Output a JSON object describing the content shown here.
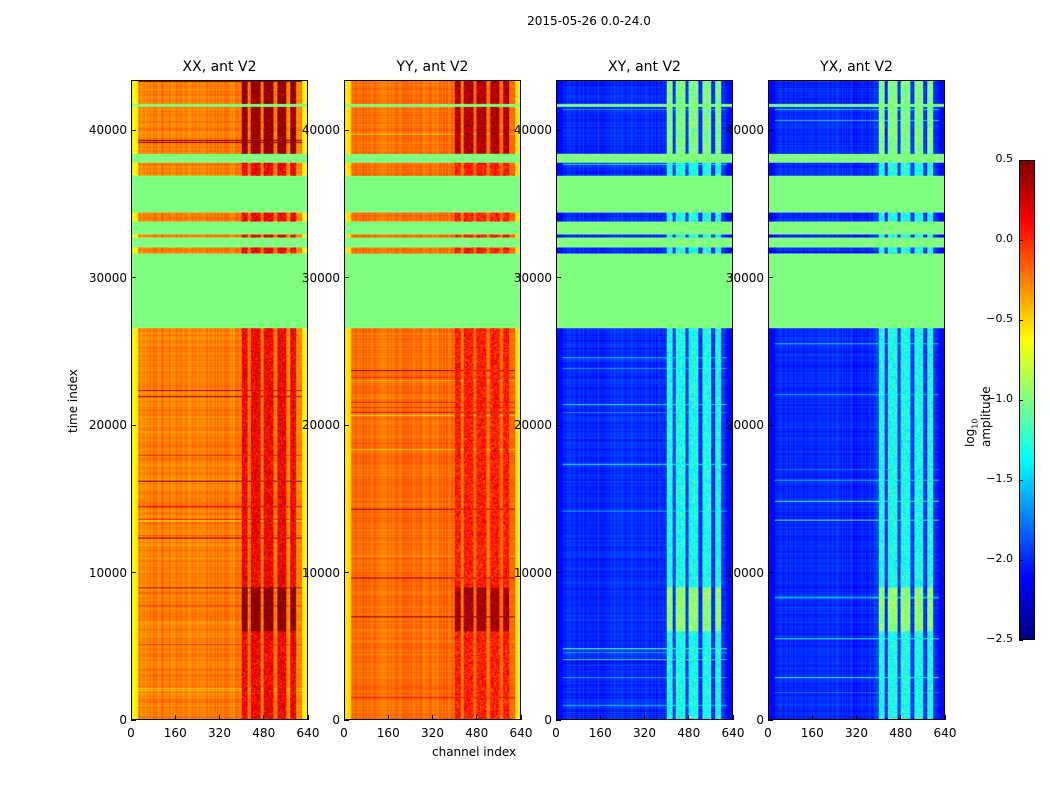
{
  "chart_data": {
    "type": "heatmap",
    "title": "2015-05-26 0.0-24.0",
    "xlabel": "channel index",
    "ylabel": "time index",
    "xlim": [
      0,
      640
    ],
    "ylim": [
      0,
      43400
    ],
    "xticks": [
      "0",
      "160",
      "320",
      "480",
      "640"
    ],
    "xtick_values": [
      0,
      160,
      320,
      480,
      640
    ],
    "yticks": [
      "0",
      "10000",
      "20000",
      "30000",
      "40000"
    ],
    "ytick_values": [
      0,
      10000,
      20000,
      30000,
      40000
    ],
    "colorbar": {
      "label": "log10 amplitude",
      "label_main": "log",
      "label_sub": "10",
      "label_rest": " amplitude",
      "colormap": "jet",
      "range": [
        -2.5,
        0.5
      ],
      "ticks": [
        "0.5",
        "0.0",
        "−0.5",
        "−1.0",
        "−1.5",
        "−2.0",
        "−2.5"
      ],
      "tick_values": [
        0.5,
        0.0,
        -0.5,
        -1.0,
        -1.5,
        -2.0,
        -2.5
      ]
    },
    "flagged_value": -1.0,
    "flagged_time_ranges": [
      [
        26600,
        31700
      ],
      [
        32100,
        32800
      ],
      [
        33000,
        33900
      ],
      [
        34500,
        37000
      ],
      [
        37900,
        38500
      ],
      [
        41700,
        41900
      ]
    ],
    "rfi_channel_range": [
      400,
      600
    ],
    "panels": [
      {
        "title": "XX, ant V2",
        "base_value": -0.25,
        "rfi_value": 0.15,
        "edge_value": -0.6
      },
      {
        "title": "YY, ant V2",
        "base_value": -0.2,
        "rfi_value": 0.05,
        "edge_value": -0.55
      },
      {
        "title": "XY, ant V2",
        "base_value": -2.0,
        "rfi_value": -1.3,
        "edge_value": -2.1
      },
      {
        "title": "YX, ant V2",
        "base_value": -2.0,
        "rfi_value": -1.3,
        "edge_value": -2.1
      }
    ]
  }
}
